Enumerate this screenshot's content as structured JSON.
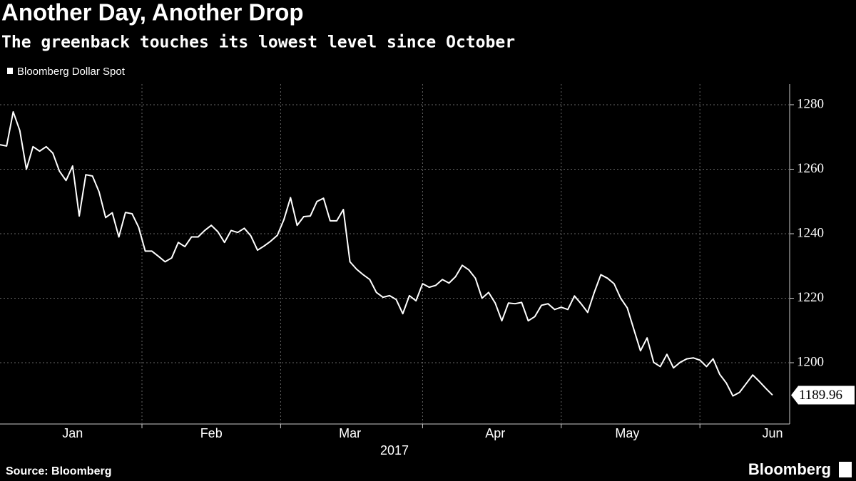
{
  "chart_data": {
    "type": "line",
    "title": "Another Day, Another Drop",
    "subtitle": "The greenback touches its lowest level since October",
    "source": "Source: Bloomberg",
    "brand": "Bloomberg",
    "x_label": "2017",
    "categories": [
      null,
      null,
      null,
      null,
      null,
      null,
      null,
      null,
      null,
      null,
      null,
      "Jan",
      null,
      null,
      null,
      null,
      null,
      null,
      null,
      null,
      null,
      null,
      null,
      null,
      null,
      null,
      null,
      null,
      null,
      null,
      null,
      null,
      "Feb",
      null,
      null,
      null,
      null,
      null,
      null,
      null,
      null,
      null,
      null,
      null,
      null,
      null,
      null,
      null,
      null,
      null,
      null,
      null,
      null,
      "Mar",
      null,
      null,
      null,
      null,
      null,
      null,
      null,
      null,
      null,
      null,
      null,
      null,
      null,
      null,
      null,
      null,
      null,
      null,
      null,
      null,
      null,
      "Apr",
      null,
      null,
      null,
      null,
      null,
      null,
      null,
      null,
      null,
      null,
      null,
      null,
      null,
      null,
      null,
      null,
      null,
      null,
      null,
      "May",
      null,
      null,
      null,
      null,
      null,
      null,
      null,
      null,
      null,
      null,
      null,
      null,
      null,
      null,
      null,
      null,
      null,
      null,
      null,
      null,
      null,
      "Jun"
    ],
    "series": [
      {
        "name": "Bloomberg Dollar Spot",
        "color": "#ffffff",
        "values": [
          1267.6,
          1267.2,
          1277.8,
          1272,
          1260,
          1267,
          1265.6,
          1267,
          1265,
          1259.4,
          1256.5,
          1261,
          1245.5,
          1258.3,
          1257.9,
          1253,
          1245,
          1246.5,
          1239,
          1246.6,
          1246.2,
          1242,
          1234.6,
          1234.6,
          1233,
          1231.3,
          1232.5,
          1237.3,
          1236,
          1239,
          1239,
          1241,
          1242.6,
          1240.6,
          1237.3,
          1241,
          1240.4,
          1241.7,
          1239.3,
          1234.9,
          1236.2,
          1237.7,
          1239.5,
          1244.4,
          1251.2,
          1242.6,
          1245.3,
          1245.5,
          1250,
          1251,
          1244,
          1244,
          1247.5,
          1231.3,
          1229,
          1227.3,
          1225.8,
          1221.8,
          1220.3,
          1220.8,
          1219.6,
          1215.2,
          1220.8,
          1219.2,
          1224.5,
          1223.4,
          1224,
          1225.8,
          1224.7,
          1226.7,
          1230.2,
          1228.8,
          1226.2,
          1220,
          1221.8,
          1218.5,
          1213,
          1218.5,
          1218.3,
          1218.7,
          1213,
          1214.3,
          1217.8,
          1218.3,
          1216.5,
          1217.2,
          1216.5,
          1220.7,
          1218.3,
          1215.6,
          1221.8,
          1227.3,
          1226.2,
          1224.5,
          1220,
          1217,
          1210.3,
          1203.7,
          1207.7,
          1200.1,
          1198.8,
          1202.6,
          1198.4,
          1200.1,
          1201.2,
          1201.5,
          1200.8,
          1198.8,
          1201.2,
          1196.4,
          1193.7,
          1189.7,
          1190.8,
          1193.5,
          1196.2,
          1194.2,
          1192,
          1189.96
        ]
      }
    ],
    "ylim": [
      1181,
      1286.4
    ],
    "yticks": [
      1200,
      1220,
      1240,
      1260,
      1280
    ],
    "grid": true
  }
}
